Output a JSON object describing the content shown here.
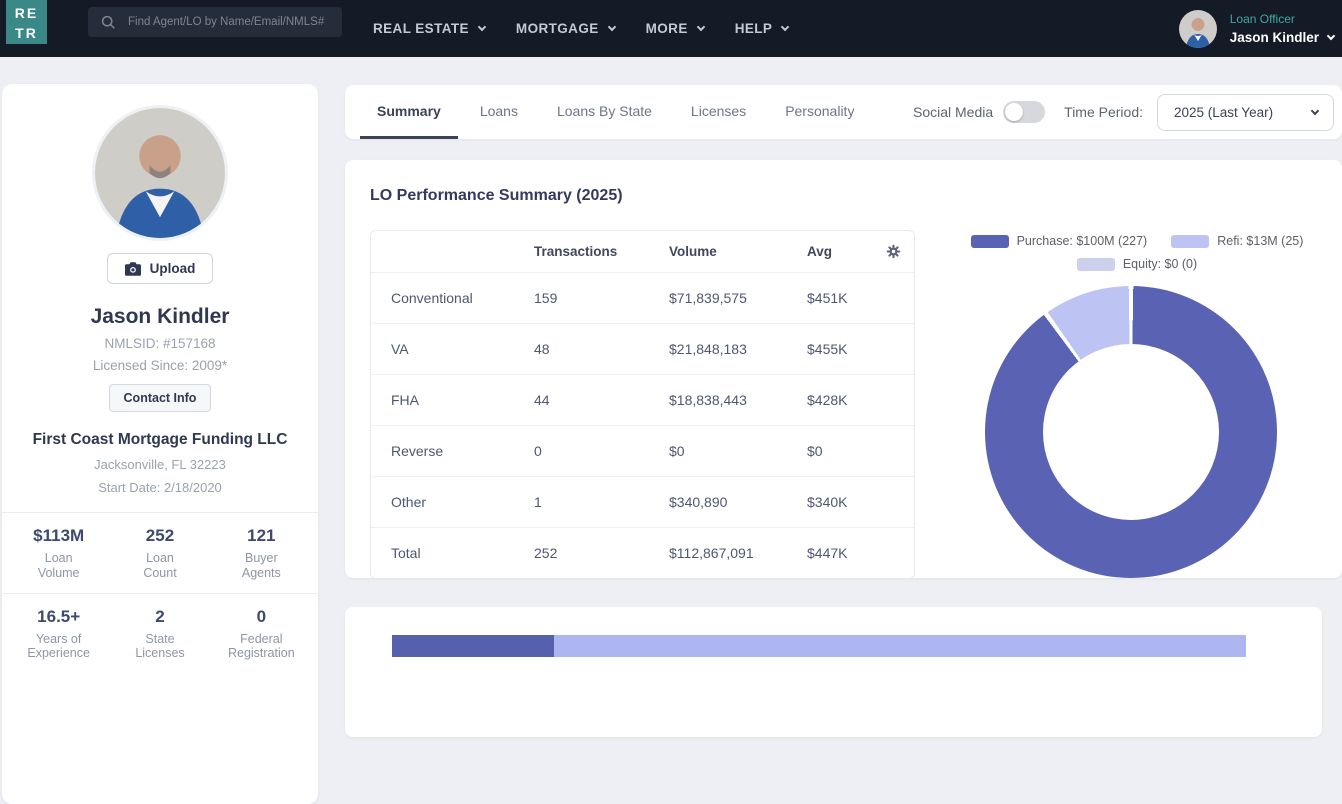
{
  "navbar": {
    "logo": {
      "line1": "RE",
      "line2": "TR"
    },
    "search_placeholder": "Find Agent/LO by Name/Email/NMLS#",
    "menus": [
      {
        "id": "real-estate",
        "label": "REAL ESTATE"
      },
      {
        "id": "mortgage",
        "label": "MORTGAGE"
      },
      {
        "id": "more",
        "label": "MORE"
      },
      {
        "id": "help",
        "label": "HELP"
      }
    ],
    "user": {
      "role": "Loan Officer",
      "name": "Jason Kindler"
    }
  },
  "profile": {
    "upload_label": "Upload",
    "name": "Jason Kindler",
    "nmls_id": "NMLSID: #157168",
    "licensed_since": "Licensed Since: 2009*",
    "contact_button": "Contact Info",
    "company": "First Coast Mortgage Funding LLC",
    "location": "Jacksonville, FL 32223",
    "start_date": "Start Date: 2/18/2020",
    "stats_rows": [
      [
        {
          "value": "$113M",
          "lines": [
            "Loan",
            "Volume"
          ]
        },
        {
          "value": "252",
          "lines": [
            "Loan",
            "Count"
          ]
        },
        {
          "value": "121",
          "lines": [
            "Buyer",
            "Agents"
          ]
        }
      ],
      [
        {
          "value": "16.5+",
          "lines": [
            "Years of",
            "Experience"
          ]
        },
        {
          "value": "2",
          "lines": [
            "State",
            "Licenses"
          ]
        },
        {
          "value": "0",
          "lines": [
            "Federal",
            "Registration"
          ]
        }
      ]
    ]
  },
  "tabs": {
    "items": [
      "Summary",
      "Loans",
      "Loans By State",
      "Licenses",
      "Personality"
    ],
    "active": "Summary"
  },
  "controls": {
    "social_media_label": "Social Media",
    "social_media_enabled": false,
    "time_period_label": "Time Period:",
    "time_period_value": "2025 (Last Year)"
  },
  "summary": {
    "title": "LO Performance Summary (2025)",
    "table": {
      "columns": [
        "Transactions",
        "Volume",
        "Avg"
      ],
      "rows": [
        {
          "label": "Conventional",
          "transactions": "159",
          "volume": "$71,839,575",
          "avg": "$451K"
        },
        {
          "label": "VA",
          "transactions": "48",
          "volume": "$21,848,183",
          "avg": "$455K"
        },
        {
          "label": "FHA",
          "transactions": "44",
          "volume": "$18,838,443",
          "avg": "$428K"
        },
        {
          "label": "Reverse",
          "transactions": "0",
          "volume": "$0",
          "avg": "$0"
        },
        {
          "label": "Other",
          "transactions": "1",
          "volume": "$340,890",
          "avg": "$340K"
        },
        {
          "label": "Total",
          "transactions": "252",
          "volume": "$112,867,091",
          "avg": "$447K"
        }
      ]
    }
  },
  "chart_data": [
    {
      "type": "pie",
      "variant": "donut",
      "legend_position": "top",
      "slices": [
        {
          "name": "Purchase",
          "legend_label": "Purchase: $100M (227)",
          "volume": "$100M",
          "count": 227,
          "color": "#5a62b3"
        },
        {
          "name": "Refi",
          "legend_label": "Refi: $13M (25)",
          "volume": "$13M",
          "count": 25,
          "color": "#bdc4f4"
        },
        {
          "name": "Equity",
          "legend_label": "Equity: $0 (0)",
          "volume": "$0",
          "count": 0,
          "color": "#cdd0ec"
        }
      ],
      "legend_rows": [
        [
          0,
          1
        ],
        [
          2
        ]
      ]
    },
    {
      "type": "bar",
      "orientation": "horizontal",
      "stacked": true,
      "note": "partially visible, cut off at bottom edge of viewport",
      "segments": [
        {
          "color": "#5661ae",
          "fraction": 0.19
        },
        {
          "color": "#aeb6f2",
          "fraction": 0.81
        }
      ]
    }
  ],
  "colors": {
    "navbar_bg": "#141b27",
    "logo_teal": "#3a8888",
    "accent_teal": "#3fa99e",
    "page_bg": "#edeff4",
    "dark_text": "#2f3850",
    "muted_text": "#9aa2af"
  }
}
